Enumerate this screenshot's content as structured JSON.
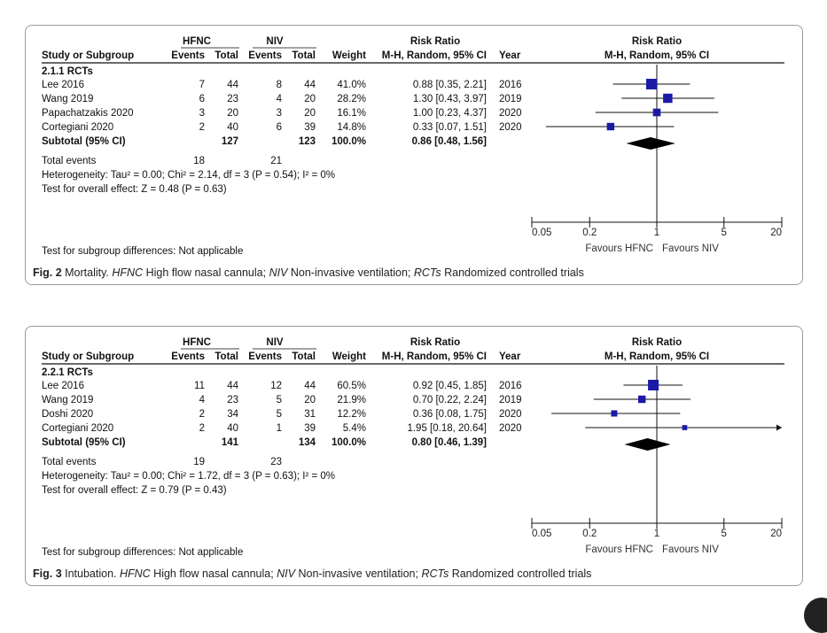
{
  "figures": [
    {
      "id": "fig2",
      "caption": {
        "label": "Fig. 2",
        "parts": [
          {
            "text": " Mortality. ",
            "italic": false
          },
          {
            "text": "HFNC",
            "italic": true
          },
          {
            "text": " High flow nasal cannula; ",
            "italic": false
          },
          {
            "text": "NIV",
            "italic": true
          },
          {
            "text": " Non-invasive ventilation; ",
            "italic": false
          },
          {
            "text": "RCTs",
            "italic": true
          },
          {
            "text": " Randomized controlled trials",
            "italic": false
          }
        ]
      },
      "headers": {
        "group1": "HFNC",
        "group2": "NIV",
        "rr": "Risk Ratio",
        "rr_plot": "Risk Ratio",
        "study": "Study or Subgroup",
        "events1": "Events",
        "total1": "Total",
        "events2": "Events",
        "total2": "Total",
        "weight": "Weight",
        "method": "M-H, Random, 95% CI",
        "year": "Year",
        "method_plot": "M-H, Random, 95% CI"
      },
      "subgroup_title": "2.1.1 RCTs",
      "studies": [
        {
          "name": "Lee 2016",
          "e1": "7",
          "t1": "44",
          "e2": "8",
          "t2": "44",
          "weight": "41.0%",
          "ci": "0.88 [0.35, 2.21]",
          "year": "2016"
        },
        {
          "name": "Wang 2019",
          "e1": "6",
          "t1": "23",
          "e2": "4",
          "t2": "20",
          "weight": "28.2%",
          "ci": "1.30 [0.43, 3.97]",
          "year": "2019"
        },
        {
          "name": "Papachatzakis 2020",
          "e1": "3",
          "t1": "20",
          "e2": "3",
          "t2": "20",
          "weight": "16.1%",
          "ci": "1.00 [0.23, 4.37]",
          "year": "2020"
        },
        {
          "name": "Cortegiani 2020",
          "e1": "2",
          "t1": "40",
          "e2": "6",
          "t2": "39",
          "weight": "14.8%",
          "ci": "0.33 [0.07, 1.51]",
          "year": "2020"
        }
      ],
      "subtotal": {
        "name": "Subtotal (95% CI)",
        "t1": "127",
        "t2": "123",
        "weight": "100.0%",
        "ci": "0.86 [0.48, 1.56]"
      },
      "total_events": {
        "label": "Total events",
        "e1": "18",
        "e2": "21"
      },
      "heterogeneity": "Heterogeneity: Tau² = 0.00; Chi² = 2.14, df = 3 (P = 0.54); I² = 0%",
      "overall_effect": "Test for overall effect: Z = 0.48 (P = 0.63)",
      "subgroup_diff": "Test for subgroup differences: Not applicable",
      "axis": {
        "ticks": [
          "0.05",
          "0.2",
          "1",
          "5",
          "20"
        ],
        "left_label": "Favours HFNC",
        "right_label": "Favours NIV"
      }
    },
    {
      "id": "fig3",
      "caption": {
        "label": "Fig. 3",
        "parts": [
          {
            "text": " Intubation. ",
            "italic": false
          },
          {
            "text": "HFNC",
            "italic": true
          },
          {
            "text": " High flow nasal cannula; ",
            "italic": false
          },
          {
            "text": "NIV",
            "italic": true
          },
          {
            "text": " Non-invasive ventilation; ",
            "italic": false
          },
          {
            "text": "RCTs",
            "italic": true
          },
          {
            "text": " Randomized controlled trials",
            "italic": false
          }
        ]
      },
      "headers": {
        "group1": "HFNC",
        "group2": "NIV",
        "rr": "Risk Ratio",
        "rr_plot": "Risk Ratio",
        "study": "Study or Subgroup",
        "events1": "Events",
        "total1": "Total",
        "events2": "Events",
        "total2": "Total",
        "weight": "Weight",
        "method": "M-H, Random, 95% CI",
        "year": "Year",
        "method_plot": "M-H, Random, 95% CI"
      },
      "subgroup_title": "2.2.1 RCTs",
      "studies": [
        {
          "name": "Lee 2016",
          "e1": "11",
          "t1": "44",
          "e2": "12",
          "t2": "44",
          "weight": "60.5%",
          "ci": "0.92 [0.45, 1.85]",
          "year": "2016"
        },
        {
          "name": "Wang 2019",
          "e1": "4",
          "t1": "23",
          "e2": "5",
          "t2": "20",
          "weight": "21.9%",
          "ci": "0.70 [0.22, 2.24]",
          "year": "2019"
        },
        {
          "name": "Doshi 2020",
          "e1": "2",
          "t1": "34",
          "e2": "5",
          "t2": "31",
          "weight": "12.2%",
          "ci": "0.36 [0.08, 1.75]",
          "year": "2020"
        },
        {
          "name": "Cortegiani 2020",
          "e1": "2",
          "t1": "40",
          "e2": "1",
          "t2": "39",
          "weight": "5.4%",
          "ci": "1.95 [0.18, 20.64]",
          "year": "2020"
        }
      ],
      "subtotal": {
        "name": "Subtotal (95% CI)",
        "t1": "141",
        "t2": "134",
        "weight": "100.0%",
        "ci": "0.80 [0.46, 1.39]"
      },
      "total_events": {
        "label": "Total events",
        "e1": "19",
        "e2": "23"
      },
      "heterogeneity": "Heterogeneity: Tau² = 0.00; Chi² = 1.72, df = 3 (P = 0.63); I² = 0%",
      "overall_effect": "Test for overall effect: Z = 0.79 (P = 0.43)",
      "subgroup_diff": "Test for subgroup differences: Not applicable",
      "axis": {
        "ticks": [
          "0.05",
          "0.2",
          "1",
          "5",
          "20"
        ],
        "left_label": "Favours HFNC",
        "right_label": "Favours NIV"
      }
    }
  ],
  "chart_data": [
    {
      "type": "forest",
      "scale": "log",
      "xlim": [
        0.05,
        20
      ],
      "ticks": [
        0.05,
        0.2,
        1,
        5,
        20
      ],
      "colors": {
        "square": "#1a1aa6",
        "diamond": "#000000"
      },
      "series": [
        {
          "study": "Lee 2016",
          "rr": 0.88,
          "lo": 0.35,
          "hi": 2.21,
          "weight": 41.0
        },
        {
          "study": "Wang 2019",
          "rr": 1.3,
          "lo": 0.43,
          "hi": 3.97,
          "weight": 28.2
        },
        {
          "study": "Papachatzakis 2020",
          "rr": 1.0,
          "lo": 0.23,
          "hi": 4.37,
          "weight": 16.1
        },
        {
          "study": "Cortegiani 2020",
          "rr": 0.33,
          "lo": 0.07,
          "hi": 1.51,
          "weight": 14.8
        }
      ],
      "pooled": {
        "rr": 0.86,
        "lo": 0.48,
        "hi": 1.56
      }
    },
    {
      "type": "forest",
      "scale": "log",
      "xlim": [
        0.05,
        20
      ],
      "ticks": [
        0.05,
        0.2,
        1,
        5,
        20
      ],
      "colors": {
        "square": "#1a1aa6",
        "diamond": "#000000"
      },
      "series": [
        {
          "study": "Lee 2016",
          "rr": 0.92,
          "lo": 0.45,
          "hi": 1.85,
          "weight": 60.5
        },
        {
          "study": "Wang 2019",
          "rr": 0.7,
          "lo": 0.22,
          "hi": 2.24,
          "weight": 21.9
        },
        {
          "study": "Doshi 2020",
          "rr": 0.36,
          "lo": 0.08,
          "hi": 1.75,
          "weight": 12.2
        },
        {
          "study": "Cortegiani 2020",
          "rr": 1.95,
          "lo": 0.18,
          "hi": 20.64,
          "weight": 5.4
        }
      ],
      "pooled": {
        "rr": 0.8,
        "lo": 0.46,
        "hi": 1.39
      }
    }
  ]
}
